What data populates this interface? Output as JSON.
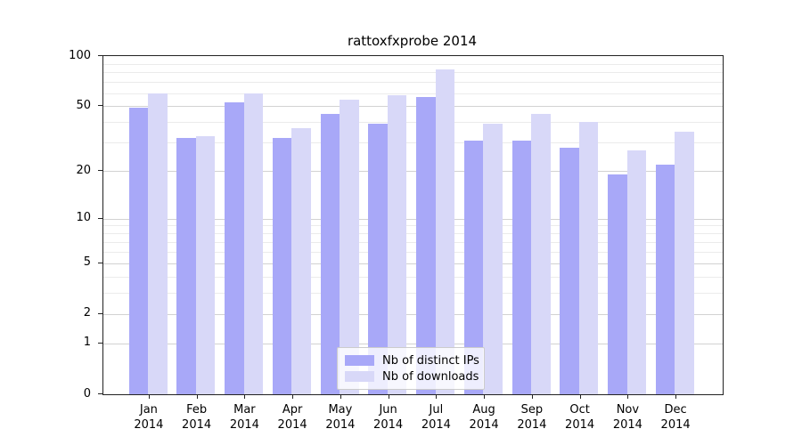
{
  "chart_data": {
    "type": "bar",
    "title": "rattoxfxprobe 2014",
    "categories": [
      "Jan",
      "Feb",
      "Mar",
      "Apr",
      "May",
      "Jun",
      "Jul",
      "Aug",
      "Sep",
      "Oct",
      "Nov",
      "Dec"
    ],
    "category_year": "2014",
    "category_full_labels": [
      "Jan 2014",
      "Feb 2014",
      "Mar 2014",
      "Apr 2014",
      "May 2014",
      "Jun 2014",
      "Jul 2014",
      "Aug 2014",
      "Sep 2014",
      "Oct 2014",
      "Nov 2014",
      "Dec 2014"
    ],
    "series": [
      {
        "name": "Nb of distinct IPs",
        "color": "#a8a8f8",
        "values": [
          49,
          32,
          53,
          32,
          45,
          39,
          57,
          31,
          31,
          28,
          19,
          22
        ]
      },
      {
        "name": "Nb of downloads",
        "color": "#d8d8f8",
        "values": [
          60,
          33,
          60,
          37,
          55,
          58,
          83,
          39,
          45,
          40,
          27,
          35
        ]
      }
    ],
    "xlabel": "",
    "ylabel": "",
    "ylim": [
      0,
      100
    ],
    "yscale": "log1p",
    "yticks": [
      0,
      1,
      2,
      5,
      10,
      20,
      50,
      100
    ],
    "minor_gridlines": [
      3,
      4,
      6,
      7,
      8,
      9,
      30,
      40,
      60,
      70,
      80,
      90
    ],
    "grid": "horizontal",
    "legend_position": "lower center",
    "colors": {
      "spine": "#222222",
      "major_grid": "#d2d2d2",
      "minor_grid": "#ebebeb",
      "text": "#000000"
    }
  }
}
